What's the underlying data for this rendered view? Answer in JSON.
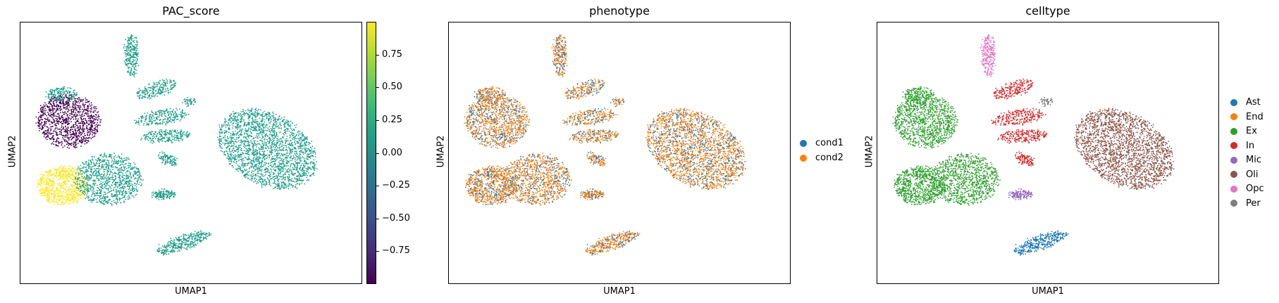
{
  "chart_data": [
    {
      "type": "scatter",
      "title": "PAC_score",
      "xlabel": "UMAP1",
      "ylabel": "UMAP2",
      "color_by": "continuous",
      "colormap": "viridis",
      "colorbar": {
        "ticks": [
          0.75,
          0.5,
          0.25,
          0.0,
          -0.25,
          -0.5,
          -0.75
        ],
        "tick_labels": [
          "0.75",
          "0.50",
          "0.25",
          "0.00",
          "−0.25",
          "−0.50",
          "−0.75"
        ],
        "range": [
          -1.0,
          1.0
        ]
      },
      "clusters_values": {
        "Ast": 0.0,
        "End": 0.0,
        "Ex_upper": -1.0,
        "Ex_lower_left": 1.0,
        "Ex_lower_right": 0.0,
        "In": 0.0,
        "Mic": 0.0,
        "Oli": 0.0,
        "Opc": 0.0,
        "Per": 0.0
      }
    },
    {
      "type": "scatter",
      "title": "phenotype",
      "xlabel": "UMAP1",
      "ylabel": "UMAP2",
      "color_by": "categorical",
      "legend": [
        {
          "name": "cond1",
          "color": "#1f77b4"
        },
        {
          "name": "cond2",
          "color": "#ff7f0e"
        }
      ],
      "legend_position": "right"
    },
    {
      "type": "scatter",
      "title": "celltype",
      "xlabel": "UMAP1",
      "ylabel": "UMAP2",
      "color_by": "categorical",
      "legend": [
        {
          "name": "Ast",
          "color": "#1f77b4"
        },
        {
          "name": "End",
          "color": "#ff7f0e"
        },
        {
          "name": "Ex",
          "color": "#2ca02c"
        },
        {
          "name": "In",
          "color": "#d62728"
        },
        {
          "name": "Mic",
          "color": "#9467bd"
        },
        {
          "name": "Oli",
          "color": "#8c564b"
        },
        {
          "name": "Opc",
          "color": "#e377c2"
        },
        {
          "name": "Per",
          "color": "#7f7f7f"
        }
      ],
      "legend_position": "right"
    }
  ]
}
